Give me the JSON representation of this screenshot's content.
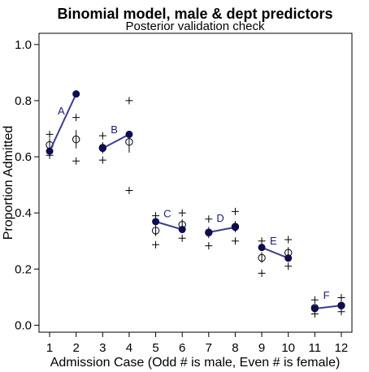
{
  "chart_data": {
    "type": "scatter",
    "title": "Binomial model, male & dept predictors",
    "subtitle": "Posterior validation check",
    "xlabel": "Admission Case (Odd # is male, Even # is female)",
    "ylabel": "Proportion Admitted",
    "xlim": [
      0.6,
      12.4
    ],
    "ylim": [
      -0.025,
      1.04
    ],
    "x_ticks": [
      1,
      2,
      3,
      4,
      5,
      6,
      7,
      8,
      9,
      10,
      11,
      12
    ],
    "y_ticks": [
      0.0,
      0.2,
      0.4,
      0.6,
      0.8,
      1.0
    ],
    "y_tick_labels": [
      "0.0",
      "0.2",
      "0.4",
      "0.6",
      "0.8",
      "1.0"
    ],
    "colors": {
      "observed": "#0d0d50",
      "line": "#3c3c90",
      "label": "#1c1c78",
      "predicted": "#000000"
    },
    "observed": [
      {
        "label": "A",
        "x": [
          1,
          2
        ],
        "y": [
          0.62,
          0.824
        ]
      },
      {
        "label": "B",
        "x": [
          3,
          4
        ],
        "y": [
          0.63,
          0.68
        ]
      },
      {
        "label": "C",
        "x": [
          5,
          6
        ],
        "y": [
          0.369,
          0.341
        ]
      },
      {
        "label": "D",
        "x": [
          7,
          8
        ],
        "y": [
          0.331,
          0.349
        ]
      },
      {
        "label": "E",
        "x": [
          9,
          10
        ],
        "y": [
          0.277,
          0.239
        ]
      },
      {
        "label": "F",
        "x": [
          11,
          12
        ],
        "y": [
          0.059,
          0.07
        ]
      }
    ],
    "predicted": [
      {
        "x": 1,
        "mean": 0.642,
        "lo": 0.615,
        "hi": 0.665,
        "plo": 0.605,
        "phi": 0.68
      },
      {
        "x": 2,
        "mean": 0.662,
        "lo": 0.63,
        "hi": 0.695,
        "plo": 0.585,
        "phi": 0.74
      },
      {
        "x": 3,
        "mean": 0.632,
        "lo": 0.612,
        "hi": 0.652,
        "plo": 0.588,
        "phi": 0.675
      },
      {
        "x": 4,
        "mean": 0.653,
        "lo": 0.615,
        "hi": 0.69,
        "plo": 0.48,
        "phi": 0.8
      },
      {
        "x": 5,
        "mean": 0.337,
        "lo": 0.318,
        "hi": 0.356,
        "plo": 0.287,
        "phi": 0.39
      },
      {
        "x": 6,
        "mean": 0.358,
        "lo": 0.338,
        "hi": 0.377,
        "plo": 0.31,
        "phi": 0.4
      },
      {
        "x": 7,
        "mean": 0.33,
        "lo": 0.31,
        "hi": 0.35,
        "plo": 0.283,
        "phi": 0.378
      },
      {
        "x": 8,
        "mean": 0.351,
        "lo": 0.331,
        "hi": 0.371,
        "plo": 0.3,
        "phi": 0.405
      },
      {
        "x": 9,
        "mean": 0.24,
        "lo": 0.222,
        "hi": 0.26,
        "plo": 0.185,
        "phi": 0.3
      },
      {
        "x": 10,
        "mean": 0.258,
        "lo": 0.238,
        "hi": 0.278,
        "plo": 0.21,
        "phi": 0.305
      },
      {
        "x": 11,
        "mean": 0.062,
        "lo": 0.052,
        "hi": 0.072,
        "plo": 0.04,
        "phi": 0.09
      },
      {
        "x": 12,
        "mean": 0.07,
        "lo": 0.06,
        "hi": 0.08,
        "plo": 0.048,
        "phi": 0.098
      }
    ],
    "grid": false,
    "legend": "none"
  }
}
